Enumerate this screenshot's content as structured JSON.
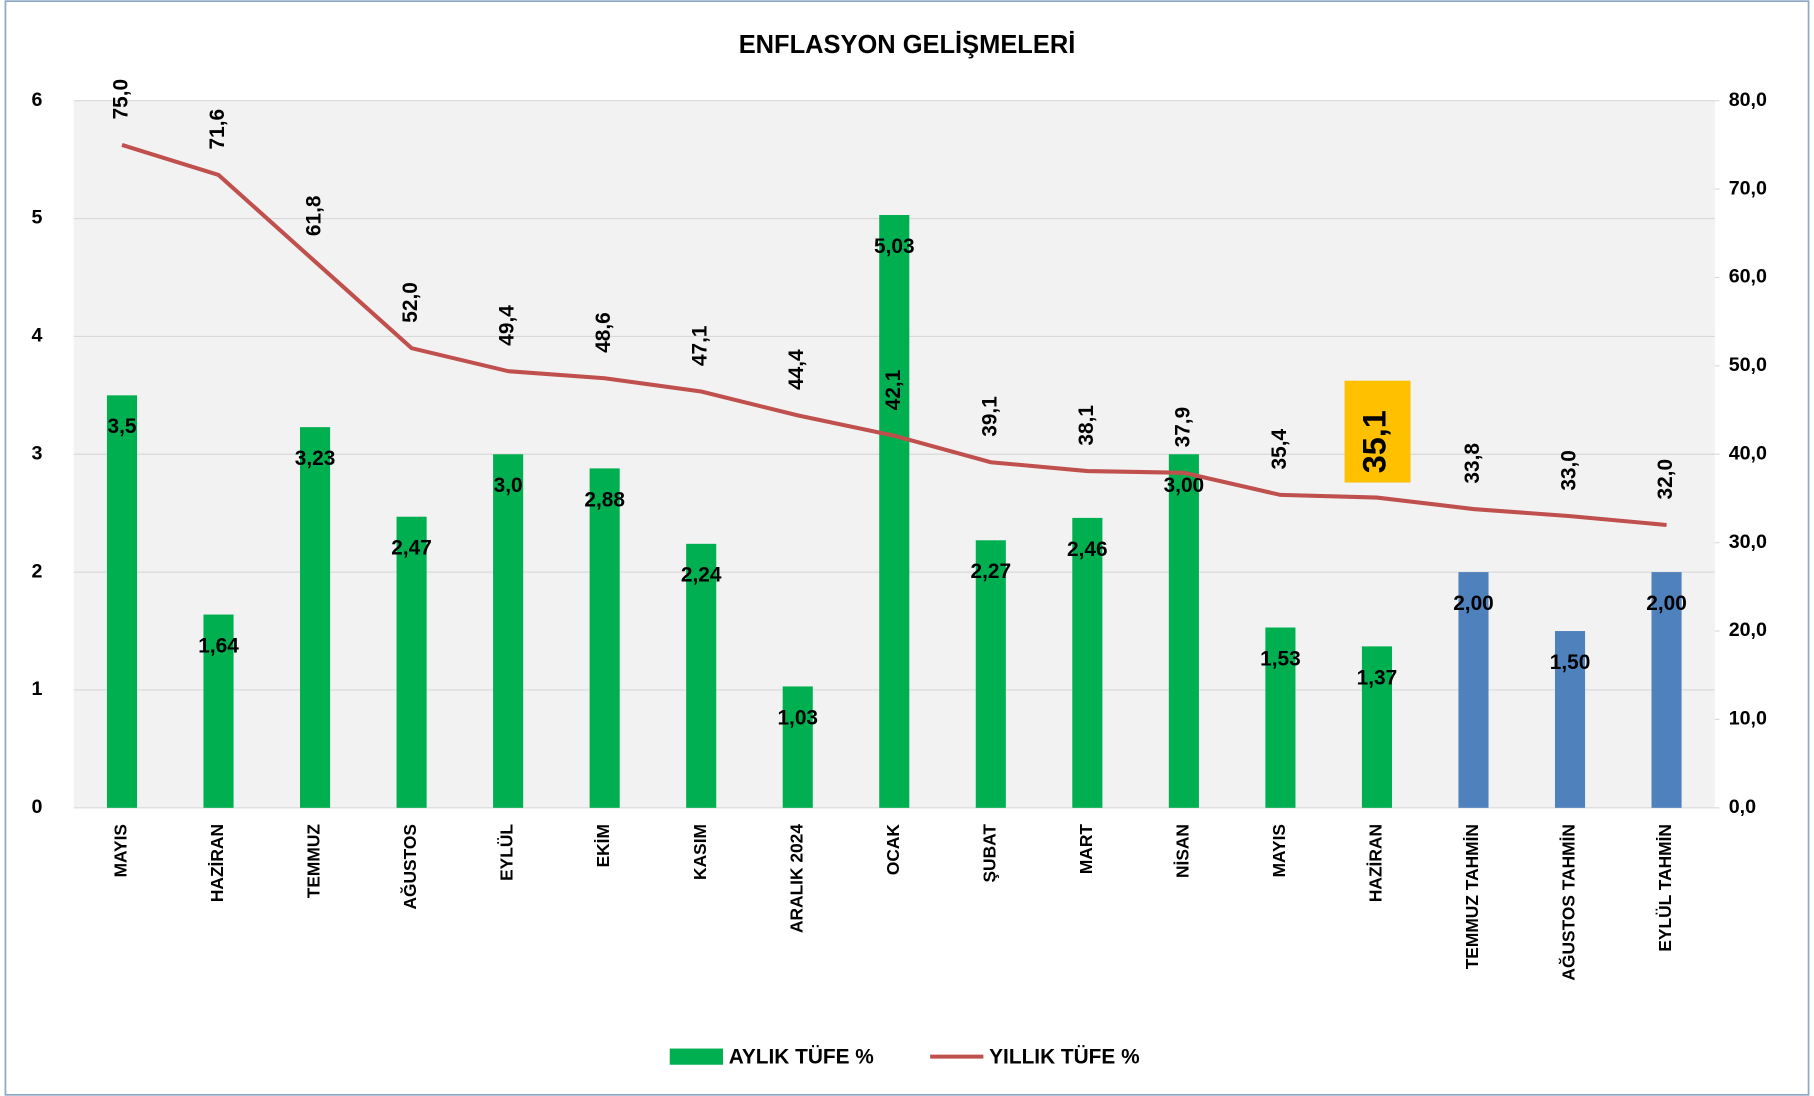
{
  "chart_data": {
    "type": "bar_line",
    "title": "ENFLASYON GELİŞMELERİ",
    "categories": [
      "MAYIS",
      "HAZİRAN",
      "TEMMUZ",
      "AĞUSTOS",
      "EYLÜL",
      "EKİM",
      "KASIM",
      "ARALIK 2024",
      "OCAK",
      "ŞUBAT",
      "MART",
      "NİSAN",
      "MAYIS",
      "HAZİRAN",
      "TEMMUZ TAHMİN",
      "AĞUSTOS TAHMİN",
      "EYLÜL TAHMİN"
    ],
    "series": [
      {
        "name": "AYLIK TÜFE %",
        "type": "bar",
        "color": "#00b050",
        "colors": [
          "#00b050",
          "#00b050",
          "#00b050",
          "#00b050",
          "#00b050",
          "#00b050",
          "#00b050",
          "#00b050",
          "#00b050",
          "#00b050",
          "#00b050",
          "#00b050",
          "#00b050",
          "#00b050",
          "#4f81bd",
          "#4f81bd",
          "#4f81bd"
        ],
        "values": [
          3.5,
          1.64,
          3.23,
          2.47,
          3.0,
          2.88,
          2.24,
          1.03,
          5.03,
          2.27,
          2.46,
          3.0,
          1.53,
          1.37,
          2.0,
          1.5,
          2.0
        ],
        "value_labels": [
          "3,5",
          "1,64",
          "3,23",
          "2,47",
          "3,0",
          "2,88",
          "2,24",
          "1,03",
          "5,03",
          "2,27",
          "2,46",
          "3,00",
          "1,53",
          "1,37",
          "2,00",
          "1,50",
          "2,00"
        ]
      },
      {
        "name": "YILLIK TÜFE %",
        "type": "line",
        "axis": "y2",
        "color": "#c0504d",
        "values": [
          75.0,
          71.6,
          61.8,
          52.0,
          49.4,
          48.6,
          47.1,
          44.4,
          42.1,
          39.1,
          38.1,
          37.9,
          35.4,
          35.1,
          33.8,
          33.0,
          32.0
        ],
        "value_labels": [
          "75,0",
          "71,6",
          "61,8",
          "52,0",
          "49,4",
          "48,6",
          "47,1",
          "44,4",
          "42,1",
          "39,1",
          "38,1",
          "37,9",
          "35,4",
          "35,1",
          "33,8",
          "33,0",
          "32,0"
        ],
        "highlighted_label": 13,
        "highlight_color": "#ffc000"
      }
    ],
    "ylim": [
      0,
      6
    ],
    "yticks": [
      0,
      1,
      2,
      3,
      4,
      5,
      6
    ],
    "y2lim": [
      0,
      80
    ],
    "y2ticks": [
      {
        "value": 0,
        "label": "0,0"
      },
      {
        "value": 10,
        "label": "10,0"
      },
      {
        "value": 20,
        "label": "20,0"
      },
      {
        "value": 30,
        "label": "30,0"
      },
      {
        "value": 40,
        "label": "40,0"
      },
      {
        "value": 50,
        "label": "50,0"
      },
      {
        "value": 60,
        "label": "60,0"
      },
      {
        "value": 70,
        "label": "70,0"
      },
      {
        "value": 80,
        "label": "80,0"
      }
    ],
    "grid": true,
    "legend": "bottom"
  }
}
